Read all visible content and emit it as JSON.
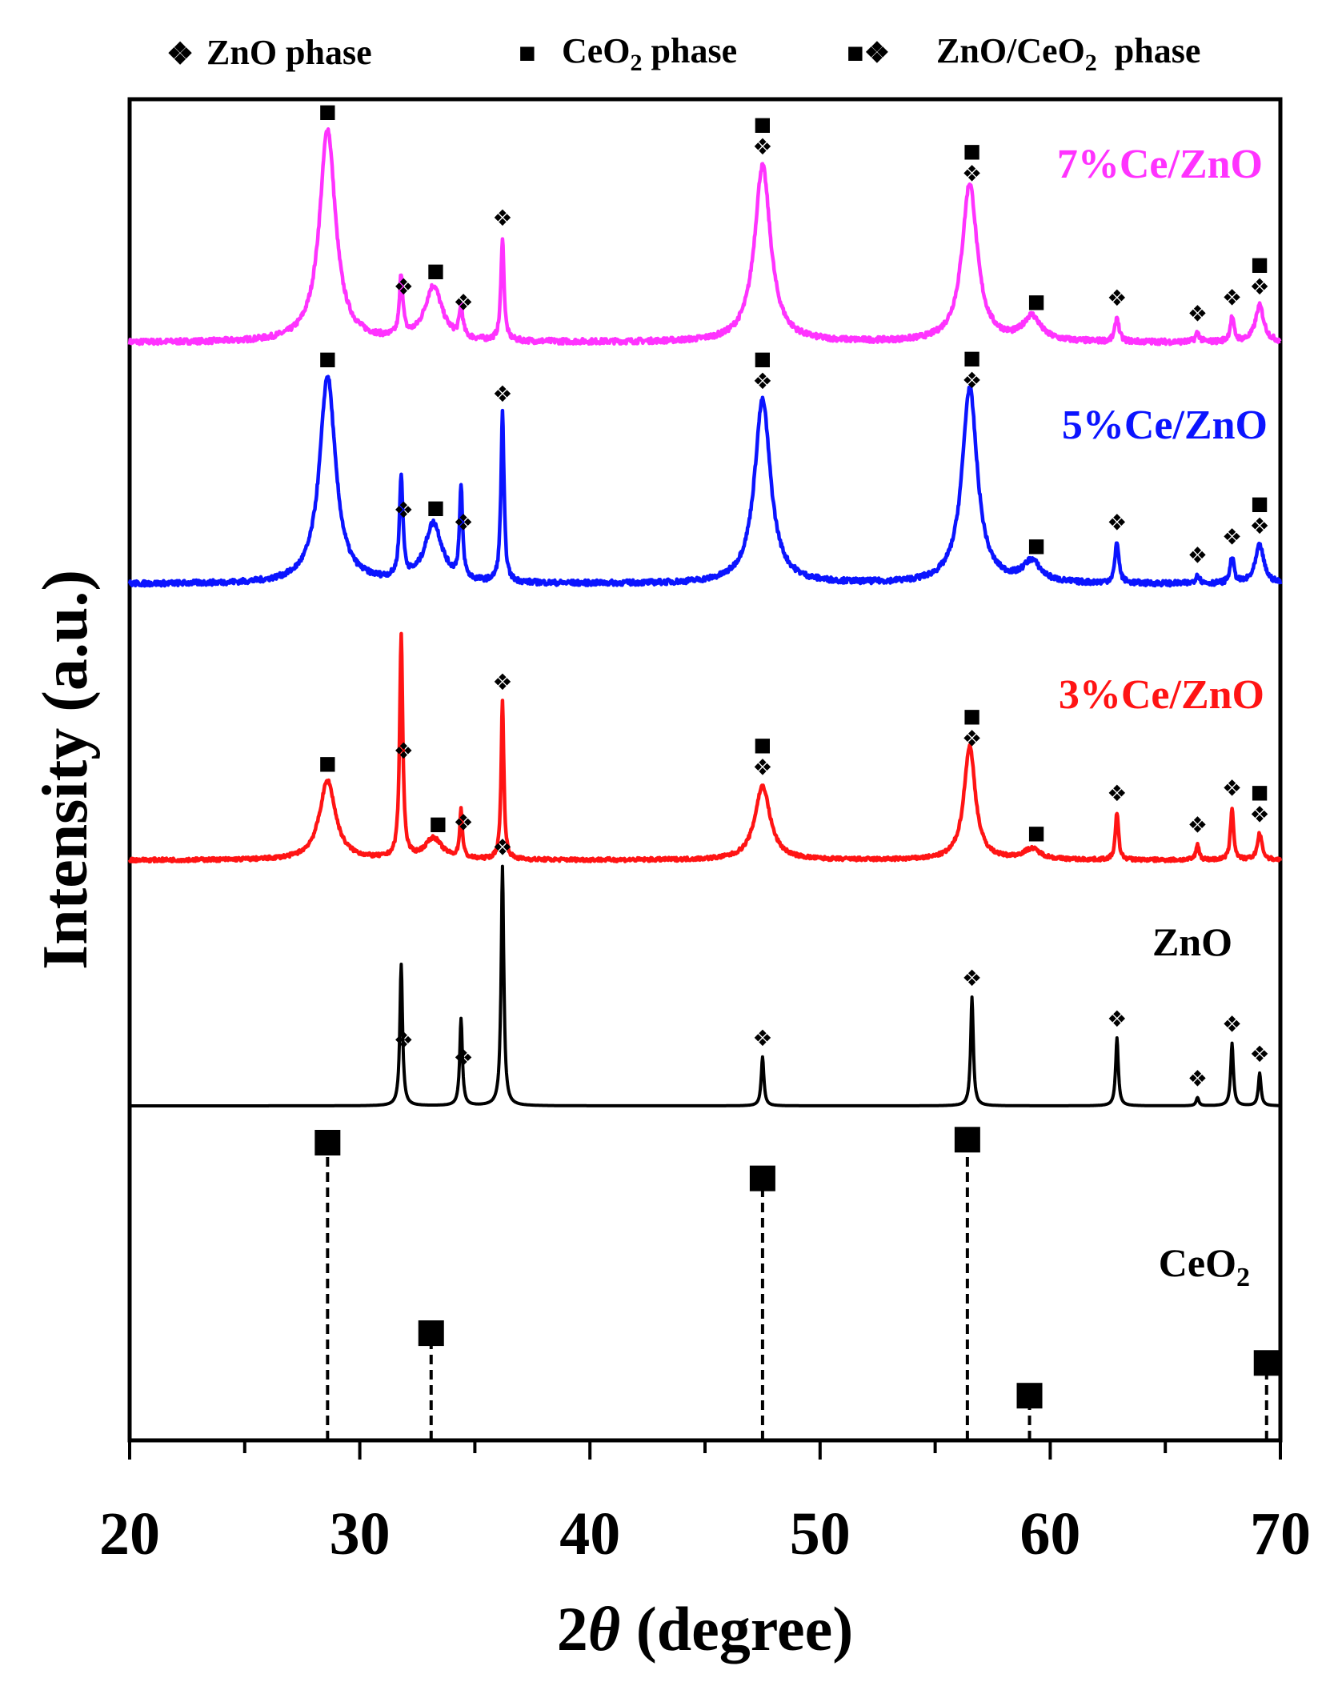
{
  "chart_data": {
    "type": "line",
    "xlabel_prefix": "2",
    "xlabel_theta": "θ",
    "xlabel_suffix": " (degree)",
    "ylabel": "Intensity (a.u.)",
    "xlim": [
      20,
      70
    ],
    "x_ticks": [
      20,
      30,
      40,
      50,
      60,
      70
    ],
    "x_tick_labels": [
      "20",
      "30",
      "40",
      "50",
      "60",
      "70"
    ],
    "legend": {
      "position": "top",
      "items": [
        {
          "marker": "❖",
          "label": "ZnO phase"
        },
        {
          "marker": "■",
          "label": "CeO",
          "sub": "2",
          "label_tail": " phase"
        },
        {
          "marker": "■❖",
          "label": "ZnO/CeO",
          "sub": "2",
          "label_tail": "  phase"
        }
      ]
    },
    "colors": {
      "7": "#ff33ff",
      "5": "#0b14ff",
      "3": "#ff1414",
      "zno": "#000000",
      "ref": "#000000"
    },
    "series": [
      {
        "key": "7",
        "name": "7%Ce/ZnO",
        "color": "#ff33ff",
        "noise": 0.9,
        "peaks": [
          [
            28.6,
            70,
            0.42
          ],
          [
            31.8,
            20,
            0.09
          ],
          [
            33.2,
            18,
            0.45
          ],
          [
            34.4,
            10,
            0.09
          ],
          [
            36.2,
            34,
            0.08
          ],
          [
            47.5,
            58,
            0.42
          ],
          [
            56.5,
            52,
            0.4
          ],
          [
            59.2,
            8,
            0.45
          ],
          [
            62.9,
            8,
            0.1
          ],
          [
            66.4,
            3,
            0.1
          ],
          [
            67.9,
            8,
            0.1
          ],
          [
            69.1,
            12,
            0.22
          ]
        ],
        "annotations": [
          {
            "x": 28.6,
            "m": "■"
          },
          {
            "x": 31.9,
            "m": "❖"
          },
          {
            "x": 33.3,
            "m": "■"
          },
          {
            "x": 34.5,
            "m": "❖"
          },
          {
            "x": 36.2,
            "m": "❖"
          },
          {
            "x": 47.5,
            "m": "■❖"
          },
          {
            "x": 56.6,
            "m": "■❖"
          },
          {
            "x": 59.4,
            "m": "■"
          },
          {
            "x": 62.9,
            "m": "❖"
          },
          {
            "x": 66.4,
            "m": "❖"
          },
          {
            "x": 67.9,
            "m": "❖"
          },
          {
            "x": 69.1,
            "m": "■❖"
          }
        ]
      },
      {
        "key": "5",
        "name": "5%Ce/ZnO",
        "color": "#0b14ff",
        "noise": 0.9,
        "peaks": [
          [
            28.6,
            70,
            0.42
          ],
          [
            31.8,
            34,
            0.09
          ],
          [
            33.2,
            20,
            0.45
          ],
          [
            34.4,
            30,
            0.08
          ],
          [
            36.2,
            57,
            0.08
          ],
          [
            47.5,
            62,
            0.42
          ],
          [
            56.5,
            66,
            0.4
          ],
          [
            59.2,
            7,
            0.45
          ],
          [
            62.9,
            14,
            0.1
          ],
          [
            66.4,
            3,
            0.1
          ],
          [
            67.9,
            9,
            0.1
          ],
          [
            69.1,
            13,
            0.22
          ]
        ],
        "annotations": [
          {
            "x": 28.6,
            "m": "■"
          },
          {
            "x": 31.9,
            "m": "❖"
          },
          {
            "x": 33.3,
            "m": "■"
          },
          {
            "x": 34.5,
            "m": "❖"
          },
          {
            "x": 36.2,
            "m": "❖"
          },
          {
            "x": 47.5,
            "m": "■❖"
          },
          {
            "x": 56.6,
            "m": "■❖"
          },
          {
            "x": 59.4,
            "m": "■"
          },
          {
            "x": 62.9,
            "m": "❖"
          },
          {
            "x": 66.4,
            "m": "❖"
          },
          {
            "x": 67.9,
            "m": "❖"
          },
          {
            "x": 69.1,
            "m": "■❖"
          }
        ]
      },
      {
        "key": "3",
        "name": "3%Ce/ZnO",
        "color": "#ff1414",
        "noise": 0.7,
        "peaks": [
          [
            28.6,
            30,
            0.42
          ],
          [
            31.8,
            84,
            0.08
          ],
          [
            33.2,
            8,
            0.45
          ],
          [
            34.4,
            18,
            0.07
          ],
          [
            36.2,
            60,
            0.07
          ],
          [
            47.5,
            28,
            0.4
          ],
          [
            56.5,
            43,
            0.3
          ],
          [
            59.2,
            4,
            0.45
          ],
          [
            62.9,
            18,
            0.08
          ],
          [
            66.4,
            6,
            0.08
          ],
          [
            67.9,
            20,
            0.08
          ],
          [
            69.1,
            10,
            0.12
          ]
        ],
        "annotations": [
          {
            "x": 28.6,
            "m": "■"
          },
          {
            "x": 31.9,
            "m": "❖"
          },
          {
            "x": 33.4,
            "m": "■"
          },
          {
            "x": 34.5,
            "m": "❖"
          },
          {
            "x": 36.2,
            "m": "❖"
          },
          {
            "x": 47.5,
            "m": "■❖"
          },
          {
            "x": 56.6,
            "m": "■❖"
          },
          {
            "x": 59.4,
            "m": "■"
          },
          {
            "x": 62.9,
            "m": "❖"
          },
          {
            "x": 66.4,
            "m": "❖"
          },
          {
            "x": 67.9,
            "m": "❖"
          },
          {
            "x": 69.1,
            "m": "■❖"
          }
        ]
      },
      {
        "key": "zno",
        "name": "ZnO",
        "color": "#000000",
        "noise": 0,
        "peaks": [
          [
            31.8,
            52,
            0.07
          ],
          [
            34.4,
            32,
            0.07
          ],
          [
            36.2,
            88,
            0.07
          ],
          [
            47.5,
            18,
            0.07
          ],
          [
            56.6,
            40,
            0.07
          ],
          [
            62.9,
            25,
            0.07
          ],
          [
            66.4,
            3,
            0.07
          ],
          [
            67.9,
            23,
            0.07
          ],
          [
            69.1,
            12,
            0.07
          ]
        ],
        "annotations": [
          {
            "x": 31.9,
            "m": "❖"
          },
          {
            "x": 34.5,
            "m": "❖"
          },
          {
            "x": 36.2,
            "m": "❖"
          },
          {
            "x": 47.5,
            "m": "❖"
          },
          {
            "x": 56.6,
            "m": "❖"
          },
          {
            "x": 62.9,
            "m": "❖"
          },
          {
            "x": 66.4,
            "m": "❖"
          },
          {
            "x": 67.9,
            "m": "❖"
          },
          {
            "x": 69.1,
            "m": "❖"
          }
        ]
      }
    ],
    "reference": {
      "name": "CeO",
      "name_sub": "2",
      "lines": [
        {
          "x": 28.6,
          "intensity": 100
        },
        {
          "x": 33.1,
          "intensity": 36
        },
        {
          "x": 47.5,
          "intensity": 88
        },
        {
          "x": 56.4,
          "intensity": 101
        },
        {
          "x": 59.1,
          "intensity": 15
        },
        {
          "x": 69.4,
          "intensity": 26
        }
      ]
    }
  }
}
